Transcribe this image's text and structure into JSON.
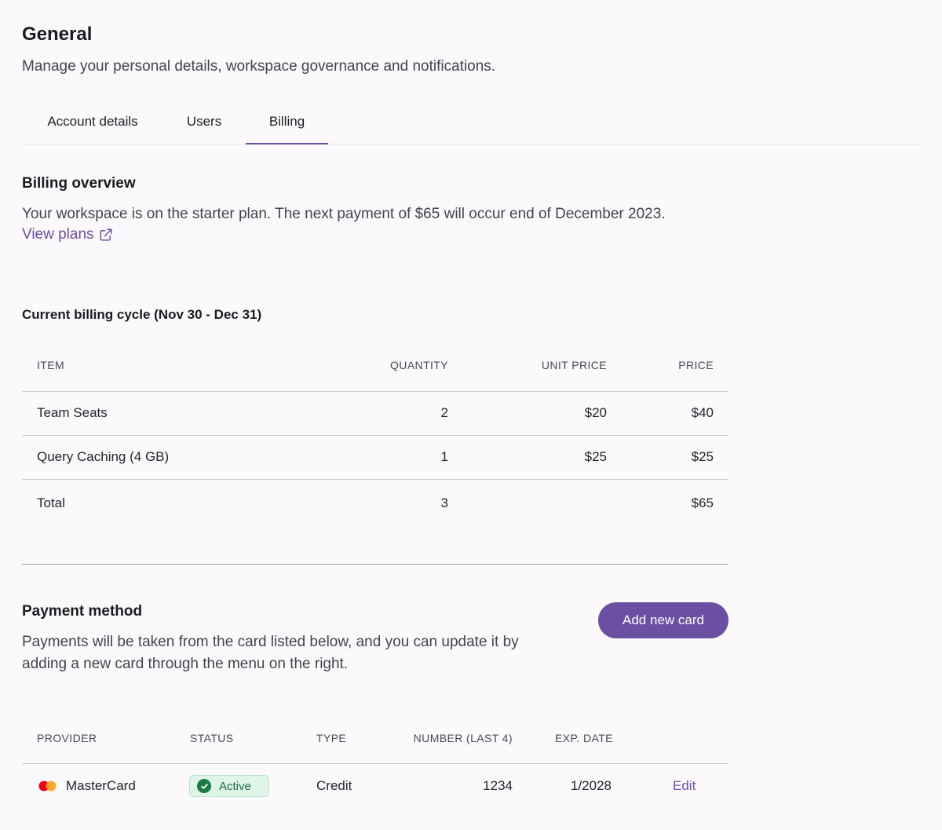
{
  "header": {
    "title": "General",
    "subtitle": "Manage your personal details, workspace governance and notifications."
  },
  "tabs": [
    {
      "label": "Account details",
      "active": false
    },
    {
      "label": "Users",
      "active": false
    },
    {
      "label": "Billing",
      "active": true
    }
  ],
  "billing_overview": {
    "title": "Billing overview",
    "description": "Your workspace is on the starter plan. The next payment of $65 will occur end of December 2023.",
    "view_plans_label": "View plans",
    "view_plans_icon": "external-link-icon"
  },
  "billing_cycle": {
    "title": "Current billing cycle (Nov 30 - Dec 31)",
    "columns": [
      "ITEM",
      "QUANTITY",
      "UNIT PRICE",
      "PRICE"
    ],
    "rows": [
      {
        "item": "Team Seats",
        "quantity": "2",
        "unit_price": "$20",
        "price": "$40"
      },
      {
        "item": "Query Caching (4 GB)",
        "quantity": "1",
        "unit_price": "$25",
        "price": "$25"
      }
    ],
    "total": {
      "label": "Total",
      "quantity": "3",
      "price": "$65"
    }
  },
  "payment_method": {
    "title": "Payment method",
    "description_line1": "Payments will be taken from the card listed below, and you can update it by",
    "description_line2": "adding a new card through the menu on the right.",
    "add_card_label": "Add new card",
    "columns": [
      "PROVIDER",
      "STATUS",
      "TYPE",
      "NUMBER (LAST 4)",
      "EXP. DATE"
    ],
    "cards": [
      {
        "provider": "MasterCard",
        "provider_icon": "mastercard-icon",
        "status": "Active",
        "status_icon": "check-circle-icon",
        "type": "Credit",
        "number_last4": "1234",
        "exp_date": "1/2028",
        "edit_label": "Edit"
      }
    ]
  },
  "colors": {
    "accent": "#6b4fa3",
    "background": "#fcf9fc",
    "active_badge_bg": "#def5e8",
    "active_badge_text": "#1d6a41",
    "mastercard_red": "#eb001b",
    "mastercard_orange": "#f79e1b"
  }
}
